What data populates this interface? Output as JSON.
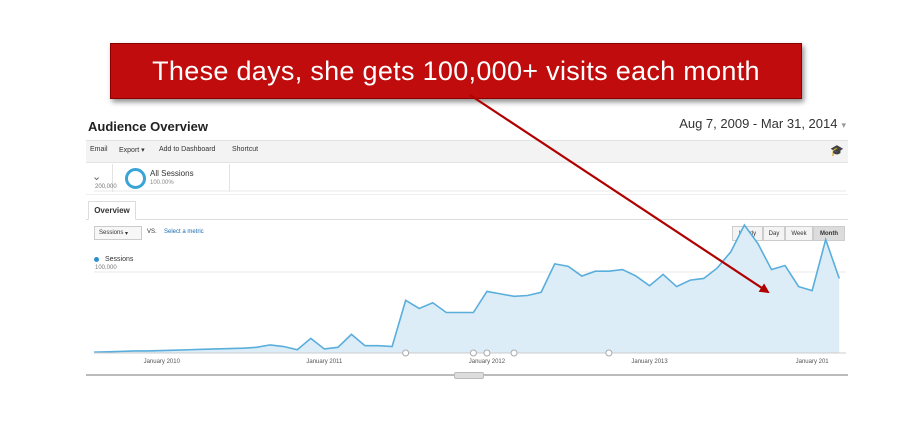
{
  "banner": {
    "text": "These days, she gets 100,000+ visits each month"
  },
  "header": {
    "title": "Audience Overview",
    "date_range": "Aug 7, 2009 - Mar 31, 2014"
  },
  "toolbar": {
    "email": "Email",
    "export": "Export ▾",
    "add_dashboard": "Add to Dashboard",
    "shortcut": "Shortcut",
    "cap_icon": "graduation-cap-icon"
  },
  "segment": {
    "label": "All Sessions",
    "pct": "100.00%"
  },
  "tabs": {
    "overview": "Overview"
  },
  "controls": {
    "metric": "Sessions",
    "metric_caret": "▾",
    "vs": "VS.",
    "select_metric": "Select a metric",
    "periods": [
      "Hourly",
      "Day",
      "Week",
      "Month"
    ],
    "active_period": "Month"
  },
  "legend": {
    "series": "Sessions"
  },
  "colors": {
    "banner": "#c00c0c",
    "line": "#5aaedb",
    "fill": "#dcedf7",
    "arrow": "#b00000"
  },
  "chart_data": {
    "type": "area",
    "series": [
      {
        "name": "Sessions"
      }
    ],
    "x_tick_labels": [
      "January 2010",
      "January 2011",
      "January 2012",
      "January 2013",
      "January 201"
    ],
    "y_tick_labels": [
      "200,000",
      "100,000"
    ],
    "ylim": [
      0,
      200000
    ],
    "y_grid": true,
    "x": [
      "2009-08",
      "2009-09",
      "2009-10",
      "2009-11",
      "2009-12",
      "2010-01",
      "2010-02",
      "2010-03",
      "2010-04",
      "2010-05",
      "2010-06",
      "2010-07",
      "2010-08",
      "2010-09",
      "2010-10",
      "2010-11",
      "2010-12",
      "2011-01",
      "2011-02",
      "2011-03",
      "2011-04",
      "2011-05",
      "2011-06",
      "2011-07",
      "2011-08",
      "2011-09",
      "2011-10",
      "2011-11",
      "2011-12",
      "2012-01",
      "2012-02",
      "2012-03",
      "2012-04",
      "2012-05",
      "2012-06",
      "2012-07",
      "2012-08",
      "2012-09",
      "2012-10",
      "2012-11",
      "2012-12",
      "2013-01",
      "2013-02",
      "2013-03",
      "2013-04",
      "2013-05",
      "2013-06",
      "2013-07",
      "2013-08",
      "2013-09",
      "2013-10",
      "2013-11",
      "2013-12",
      "2014-01",
      "2014-02",
      "2014-03"
    ],
    "values": [
      1000,
      1500,
      2000,
      2500,
      2500,
      3000,
      3500,
      4000,
      4500,
      5000,
      5500,
      6000,
      7000,
      10000,
      8000,
      4000,
      18000,
      5000,
      7000,
      23000,
      9000,
      9000,
      8000,
      65000,
      55000,
      62000,
      50000,
      50000,
      50000,
      76000,
      73000,
      70000,
      71000,
      75000,
      110000,
      107000,
      95000,
      101000,
      101000,
      103000,
      95000,
      83000,
      97000,
      82000,
      90000,
      92000,
      105000,
      125000,
      158000,
      135000,
      103000,
      108000,
      82000,
      77000,
      140000,
      92000
    ],
    "annotation_markers": [
      "2011-07",
      "2011-12",
      "2012-01",
      "2012-03",
      "2012-10"
    ]
  }
}
